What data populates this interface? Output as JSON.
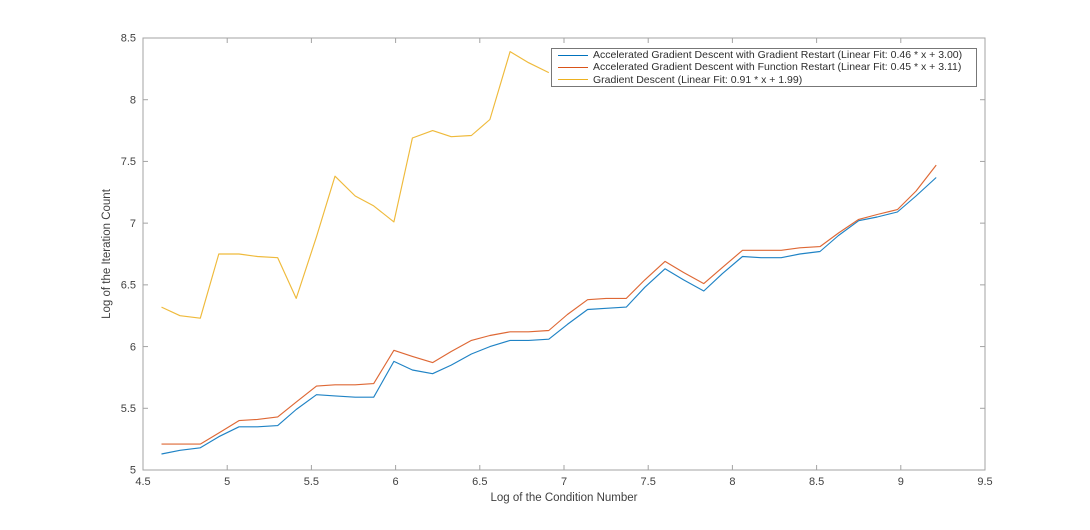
{
  "figure": {
    "background_color": "#ffffff",
    "axis_box_color": "#a3a3a3",
    "tick_label_color": "#404040"
  },
  "chart_data": {
    "type": "line",
    "title": "",
    "xlabel": "Log of the Condition Number",
    "ylabel": "Log of the Iteration Count",
    "xlim": [
      4.5,
      9.5
    ],
    "ylim": [
      5,
      8.5
    ],
    "x_ticks": [
      4.5,
      5,
      5.5,
      6,
      6.5,
      7,
      7.5,
      8,
      8.5,
      9,
      9.5
    ],
    "y_ticks": [
      5,
      5.5,
      6,
      6.5,
      7,
      7.5,
      8,
      8.5
    ],
    "grid": false,
    "legend_position": "upper-right-inside",
    "series": [
      {
        "name": "Accelerated Gradient Descent with Gradient Restart (Linear Fit: 0.46 * x + 3.00)",
        "color": "#0072BD",
        "x": [
          4.61,
          4.72,
          4.84,
          4.95,
          5.07,
          5.18,
          5.3,
          5.41,
          5.53,
          5.64,
          5.76,
          5.87,
          5.99,
          6.1,
          6.22,
          6.33,
          6.45,
          6.56,
          6.68,
          6.79,
          6.91,
          7.02,
          7.14,
          7.25,
          7.37,
          7.48,
          7.6,
          7.71,
          7.83,
          7.94,
          8.06,
          8.17,
          8.29,
          8.4,
          8.52,
          8.63,
          8.75,
          8.86,
          8.98,
          9.09,
          9.21
        ],
        "y": [
          5.13,
          5.16,
          5.18,
          5.27,
          5.35,
          5.35,
          5.36,
          5.49,
          5.61,
          5.6,
          5.59,
          5.59,
          5.88,
          5.81,
          5.78,
          5.85,
          5.94,
          6.0,
          6.05,
          6.05,
          6.06,
          6.18,
          6.3,
          6.31,
          6.32,
          6.48,
          6.63,
          6.54,
          6.45,
          6.59,
          6.73,
          6.72,
          6.72,
          6.75,
          6.77,
          6.9,
          7.02,
          7.05,
          7.09,
          7.22,
          7.37
        ]
      },
      {
        "name": "Accelerated Gradient Descent with Function Restart (Linear Fit: 0.45 * x + 3.11)",
        "color": "#D95319",
        "x": [
          4.61,
          4.72,
          4.84,
          4.95,
          5.07,
          5.18,
          5.3,
          5.41,
          5.53,
          5.64,
          5.76,
          5.87,
          5.99,
          6.1,
          6.22,
          6.33,
          6.45,
          6.56,
          6.68,
          6.79,
          6.91,
          7.02,
          7.14,
          7.25,
          7.37,
          7.48,
          7.6,
          7.71,
          7.83,
          7.94,
          8.06,
          8.17,
          8.29,
          8.4,
          8.52,
          8.63,
          8.75,
          8.86,
          8.98,
          9.09,
          9.21
        ],
        "y": [
          5.21,
          5.21,
          5.21,
          5.3,
          5.4,
          5.41,
          5.43,
          5.55,
          5.68,
          5.69,
          5.69,
          5.7,
          5.97,
          5.92,
          5.87,
          5.96,
          6.05,
          6.09,
          6.12,
          6.12,
          6.13,
          6.26,
          6.38,
          6.39,
          6.39,
          6.54,
          6.69,
          6.6,
          6.51,
          6.64,
          6.78,
          6.78,
          6.78,
          6.8,
          6.81,
          6.92,
          7.03,
          7.07,
          7.11,
          7.26,
          7.47
        ]
      },
      {
        "name": "Gradient Descent (Linear Fit: 0.91 * x + 1.99)",
        "color": "#EDB120",
        "x": [
          4.61,
          4.72,
          4.84,
          4.95,
          5.07,
          5.18,
          5.3,
          5.41,
          5.53,
          5.64,
          5.76,
          5.87,
          5.99,
          6.1,
          6.22,
          6.33,
          6.45,
          6.56,
          6.68,
          6.79,
          6.91
        ],
        "y": [
          6.32,
          6.25,
          6.23,
          6.75,
          6.75,
          6.73,
          6.72,
          6.39,
          6.89,
          7.38,
          7.22,
          7.14,
          7.01,
          7.69,
          7.75,
          7.7,
          7.71,
          7.84,
          8.39,
          8.3,
          8.22
        ],
        "visible_portion_note": "line continues upward hidden behind the legend box after x = 6.91"
      }
    ]
  }
}
